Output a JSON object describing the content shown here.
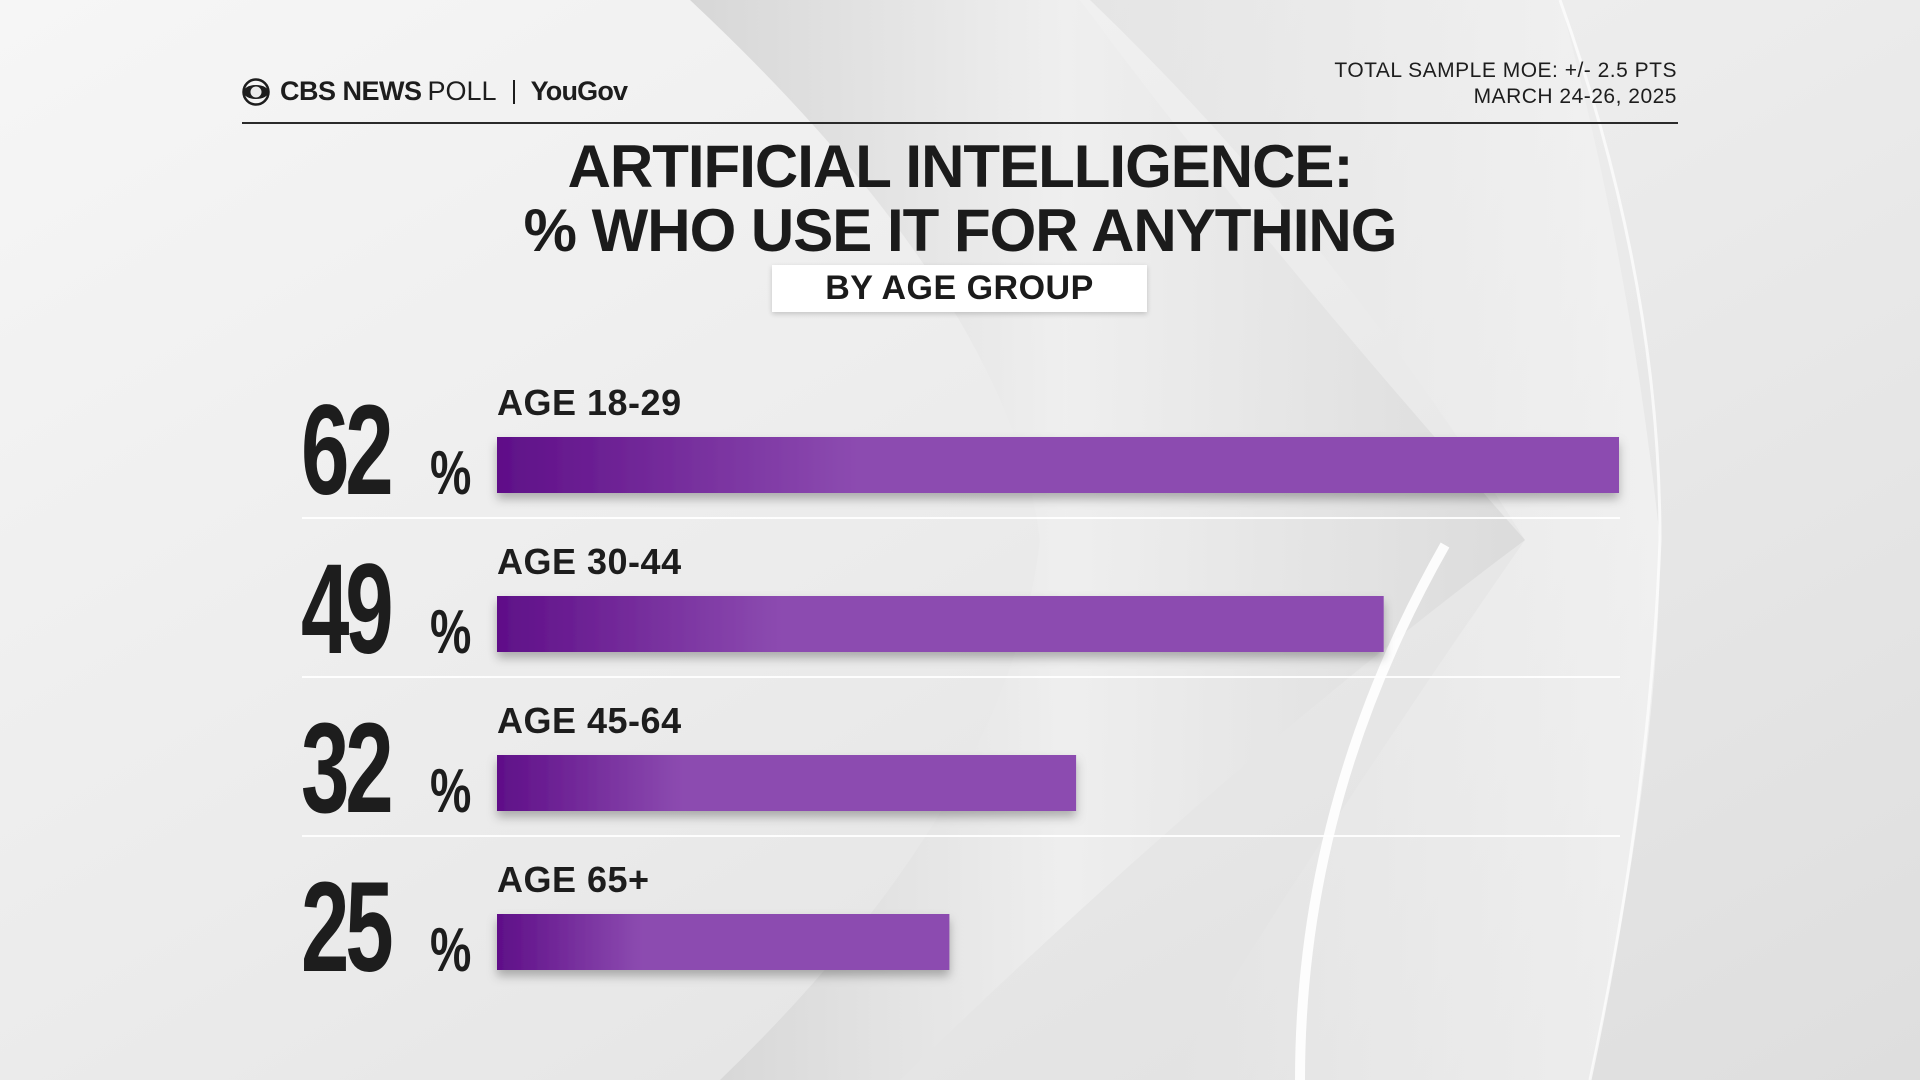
{
  "header": {
    "brand_cbs": "CBS NEWS",
    "brand_poll": "POLL",
    "brand_yougov": "YouGov",
    "moe": "TOTAL SAMPLE MOE: +/- 2.5 PTS",
    "dates": "MARCH 24-26, 2025"
  },
  "title_line1": "ARTIFICIAL INTELLIGENCE:",
  "title_line2": "% WHO USE IT FOR ANYTHING",
  "subtitle": "BY AGE GROUP",
  "colors": {
    "bar_dark": "#5f0f88",
    "bar_light": "#8c4bb0",
    "text": "#1d1d1d"
  },
  "chart_data": {
    "type": "bar",
    "orientation": "horizontal",
    "categories": [
      "AGE 18-29",
      "AGE 30-44",
      "AGE 45-64",
      "AGE 65+"
    ],
    "values": [
      62,
      49,
      32,
      25
    ],
    "value_labels": [
      "62",
      "49",
      "32",
      "25"
    ],
    "unit": "%",
    "xlim": [
      0,
      62
    ],
    "title": "ARTIFICIAL INTELLIGENCE: % WHO USE IT FOR ANYTHING",
    "subtitle": "BY AGE GROUP",
    "grid": false,
    "legend": "none"
  }
}
